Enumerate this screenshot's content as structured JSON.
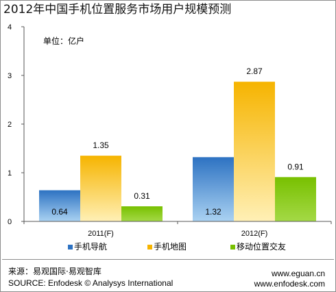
{
  "chart_data": {
    "type": "bar",
    "title": "2012年中国手机位置服务市场用户规模预测",
    "unit": "单位：亿户",
    "categories": [
      "2011(F)",
      "2012(F)"
    ],
    "series": [
      {
        "name": "手机导航",
        "values": [
          0.64,
          1.32
        ],
        "color": "#2d72c2",
        "color_light": "#aad2f2"
      },
      {
        "name": "手机地图",
        "values": [
          1.35,
          2.87
        ],
        "color": "#f6b400",
        "color_light": "#fff0b6"
      },
      {
        "name": "移动位置交友",
        "values": [
          0.31,
          0.91
        ],
        "color": "#78c000",
        "color_light": "#a4d946"
      }
    ],
    "ylim": [
      0,
      4
    ],
    "yticks": [
      0,
      1,
      2,
      3,
      4
    ],
    "grid": false,
    "legend": "bottom"
  },
  "footer": {
    "source_cn": "来源：易观国际·易观智库",
    "source_en": "SOURCE: Enfodesk © Analysys International",
    "website_1": "www.eguan.cn",
    "website_2": "www.enfodesk.com"
  }
}
